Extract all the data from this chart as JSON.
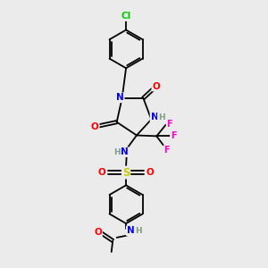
{
  "bg_color": "#ebebeb",
  "atom_colors": {
    "C": "#000000",
    "N": "#0000ff",
    "O": "#ff0000",
    "F": "#ff00cc",
    "S": "#cccc00",
    "Cl": "#00cc00",
    "H": "#7f9f7f"
  },
  "bond_color": "#000000",
  "title": ""
}
